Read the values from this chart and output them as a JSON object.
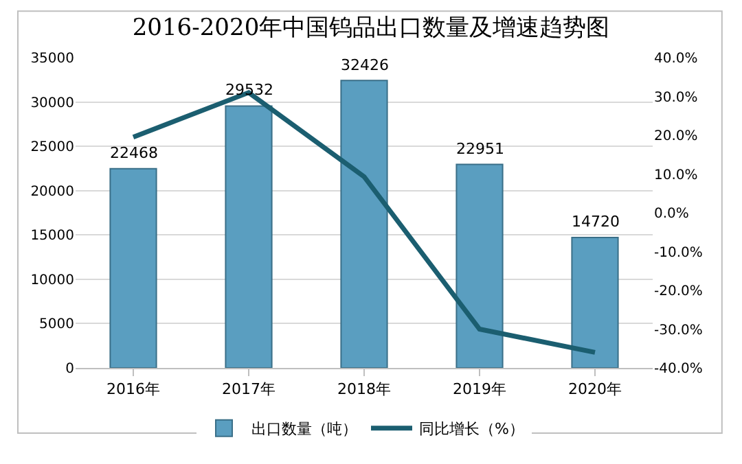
{
  "chart_data": {
    "type": "bar",
    "title": "2016-2020年中国钨品出口数量及增速趋势图",
    "categories": [
      "2016年",
      "2017年",
      "2018年",
      "2019年",
      "2020年"
    ],
    "series": [
      {
        "name": "出口数量（吨）",
        "color": "#5a9ec0",
        "values": [
          22468,
          29532,
          32426,
          22951,
          14720
        ],
        "value_labels": [
          "22468",
          "29532",
          "32426",
          "22951",
          "14720"
        ]
      },
      {
        "name": "同比增长（%）",
        "type": "line",
        "axis": "y2",
        "color": "#1b5e70",
        "values": [
          19.5,
          31,
          9.3,
          -30,
          -36
        ]
      }
    ],
    "ylim": [
      0,
      35000
    ],
    "yticks": [
      0,
      5000,
      10000,
      15000,
      20000,
      25000,
      30000,
      35000
    ],
    "y2lim": [
      -40,
      40
    ],
    "y2ticks": [
      {
        "value": -40,
        "label": "-40.0%"
      },
      {
        "value": -30,
        "label": "-30.0%"
      },
      {
        "value": -20,
        "label": "-20.0%"
      },
      {
        "value": -10,
        "label": "-10.0%"
      },
      {
        "value": 0,
        "label": "0.0%"
      },
      {
        "value": 10,
        "label": "10.0%"
      },
      {
        "value": 20,
        "label": "20.0%"
      },
      {
        "value": 30,
        "label": "30.0%"
      },
      {
        "value": 40,
        "label": "40.0%"
      }
    ],
    "grid": "y",
    "legend": "bottom",
    "marker": "none",
    "line_style": "solid"
  }
}
